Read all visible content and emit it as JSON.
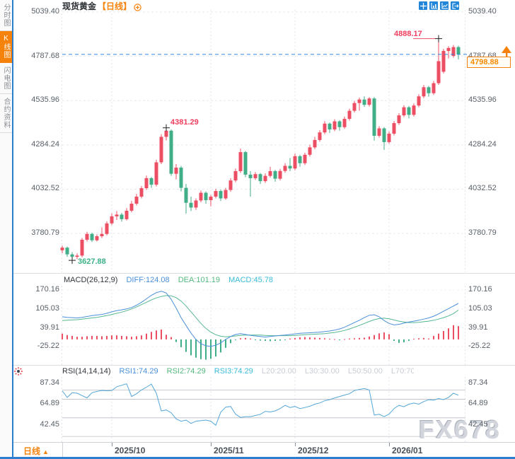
{
  "header": {
    "symbol": "现货黄金",
    "period_tag": "【日线】"
  },
  "sidebar": {
    "tabs": [
      {
        "label": "分时图",
        "active": false
      },
      {
        "label": "K线图",
        "active": true
      },
      {
        "label": "闪电图",
        "active": false
      },
      {
        "label": "合约资料",
        "active": false
      }
    ]
  },
  "toolbar": {
    "icons": [
      "crosshair",
      "axis-chart",
      "trend-chart",
      "exit"
    ]
  },
  "annotations": {
    "high": "4888.17",
    "peak": "4381.29",
    "low": "3627.88"
  },
  "price_tag": {
    "value": "4798.88"
  },
  "indicator_labels": {
    "macd": {
      "name": "MACD(26,12,9)",
      "diff": "DIFF:124.08",
      "dea": "DEA:101.19",
      "macd": "MACD:45.78"
    },
    "rsi": {
      "name": "RSI(14,14,14)",
      "rsi1": "RSI1:74.29",
      "rsi2": "RSI2:74.29",
      "rsi3": "RSI3:74.29",
      "l20": "L20:20.00",
      "l30": "L30:30.00",
      "l50": "L50:50.00",
      "l70": "L70:70.00"
    }
  },
  "bottom_bar": {
    "period": "日线",
    "period_arrow": "▲"
  },
  "watermark": "FX678",
  "colors": {
    "up": "#ec4f63",
    "down": "#40ae86",
    "diff_line": "#4a90d9",
    "dea_line": "#55b890",
    "rsi_line": "#55a7d8",
    "accent_orange": "#f5820a",
    "price_line": "#2e86e0",
    "grid": "#e6e9ee",
    "grid_vertical": "#e2e6eb",
    "rsi_grid": "#b9bdc4",
    "marker_cross": "#222222"
  },
  "chart_data": {
    "type": "candlestick",
    "title": "现货黄金 日线 (Spot Gold Daily)",
    "main": {
      "ylim": [
        3560,
        5039.4
      ],
      "ticks": [
        5039.4,
        4787.68,
        4535.96,
        4284.24,
        4032.52,
        3780.79
      ],
      "last_price": 4798.88,
      "markers": [
        {
          "index": 2,
          "price": 3627.88,
          "label": "3627.88",
          "color": "down",
          "leader": false
        },
        {
          "index": 21,
          "price": 4381.29,
          "label": "4381.29",
          "color": "up",
          "leader": false
        },
        {
          "index": 76,
          "price": 4888.17,
          "label": "4888.17",
          "color": "up",
          "leader": true
        }
      ],
      "candles": [
        [
          3685,
          3712,
          3668,
          3700
        ],
        [
          3700,
          3706,
          3648,
          3662
        ],
        [
          3662,
          3675,
          3628,
          3648
        ],
        [
          3648,
          3668,
          3635,
          3655
        ],
        [
          3655,
          3755,
          3645,
          3745
        ],
        [
          3745,
          3790,
          3735,
          3778
        ],
        [
          3778,
          3785,
          3732,
          3742
        ],
        [
          3742,
          3775,
          3735,
          3765
        ],
        [
          3765,
          3815,
          3755,
          3778
        ],
        [
          3778,
          3850,
          3770,
          3838
        ],
        [
          3838,
          3895,
          3828,
          3878
        ],
        [
          3878,
          3908,
          3858,
          3888
        ],
        [
          3888,
          3898,
          3848,
          3862
        ],
        [
          3862,
          3925,
          3855,
          3910
        ],
        [
          3910,
          3965,
          3900,
          3950
        ],
        [
          3950,
          4005,
          3940,
          3990
        ],
        [
          3990,
          4050,
          3980,
          4038
        ],
        [
          4038,
          4110,
          4028,
          4095
        ],
        [
          4095,
          4102,
          4040,
          4058
        ],
        [
          4058,
          4200,
          4048,
          4185
        ],
        [
          4185,
          4345,
          4175,
          4330
        ],
        [
          4330,
          4381.29,
          4310,
          4365
        ],
        [
          4365,
          4372,
          4108,
          4120
        ],
        [
          4120,
          4175,
          4088,
          4155
        ],
        [
          4155,
          4165,
          4020,
          4040
        ],
        [
          4040,
          4062,
          3893,
          3955
        ],
        [
          3955,
          3990,
          3908,
          3928
        ],
        [
          3928,
          3980,
          3915,
          3968
        ],
        [
          3968,
          4025,
          3958,
          4012
        ],
        [
          4012,
          4020,
          3950,
          3970
        ],
        [
          3970,
          4000,
          3935,
          3990
        ],
        [
          3990,
          4035,
          3980,
          4022
        ],
        [
          4022,
          4030,
          3965,
          3980
        ],
        [
          3980,
          4040,
          3972,
          4028
        ],
        [
          4028,
          4095,
          4018,
          4082
        ],
        [
          4082,
          4150,
          4072,
          4135
        ],
        [
          4135,
          4263,
          4125,
          4243
        ],
        [
          4243,
          4250,
          4100,
          4115
        ],
        [
          4115,
          4135,
          3990,
          4095
        ],
        [
          4095,
          4130,
          4085,
          4118
        ],
        [
          4118,
          4125,
          4062,
          4078
        ],
        [
          4078,
          4122,
          4068,
          4108
        ],
        [
          4108,
          4160,
          4098,
          4135
        ],
        [
          4135,
          4142,
          4075,
          4092
        ],
        [
          4092,
          4148,
          4082,
          4136
        ],
        [
          4136,
          4180,
          4126,
          4165
        ],
        [
          4165,
          4210,
          4135,
          4150
        ],
        [
          4150,
          4235,
          4140,
          4220
        ],
        [
          4220,
          4228,
          4160,
          4180
        ],
        [
          4180,
          4240,
          4170,
          4228
        ],
        [
          4228,
          4285,
          4218,
          4270
        ],
        [
          4270,
          4330,
          4260,
          4312
        ],
        [
          4312,
          4368,
          4302,
          4355
        ],
        [
          4355,
          4420,
          4345,
          4405
        ],
        [
          4405,
          4412,
          4352,
          4372
        ],
        [
          4372,
          4430,
          4362,
          4418
        ],
        [
          4418,
          4425,
          4365,
          4385
        ],
        [
          4385,
          4445,
          4375,
          4432
        ],
        [
          4432,
          4490,
          4422,
          4478
        ],
        [
          4478,
          4535,
          4468,
          4522
        ],
        [
          4522,
          4553,
          4478,
          4542
        ],
        [
          4542,
          4560,
          4500,
          4512
        ],
        [
          4512,
          4556,
          4502,
          4548
        ],
        [
          4548,
          4556,
          4308,
          4336
        ],
        [
          4336,
          4390,
          4326,
          4378
        ],
        [
          4378,
          4385,
          4256,
          4300
        ],
        [
          4300,
          4360,
          4290,
          4348
        ],
        [
          4348,
          4420,
          4338,
          4408
        ],
        [
          4408,
          4465,
          4398,
          4452
        ],
        [
          4452,
          4510,
          4442,
          4498
        ],
        [
          4498,
          4505,
          4435,
          4455
        ],
        [
          4455,
          4520,
          4445,
          4508
        ],
        [
          4508,
          4572,
          4498,
          4560
        ],
        [
          4560,
          4625,
          4550,
          4612
        ],
        [
          4612,
          4620,
          4558,
          4578
        ],
        [
          4578,
          4648,
          4568,
          4635
        ],
        [
          4635,
          4888.17,
          4625,
          4760
        ],
        [
          4700,
          4830,
          4690,
          4818
        ],
        [
          4818,
          4845,
          4775,
          4835
        ],
        [
          4790,
          4852,
          4780,
          4840
        ],
        [
          4840,
          4848,
          4770,
          4798.88
        ]
      ]
    },
    "macd": {
      "params": "26,12,9",
      "ylim": [
        -88,
        185
      ],
      "ticks": [
        170.16,
        105.03,
        39.91,
        -25.22
      ],
      "last": {
        "diff": 124.08,
        "dea": 101.19,
        "macd": 45.78
      },
      "diff": [
        78,
        76,
        75,
        74,
        76,
        79,
        82,
        84,
        86,
        90,
        95,
        99,
        102,
        105,
        110,
        118,
        128,
        140,
        152,
        161,
        166,
        160,
        138,
        108,
        75,
        48,
        22,
        0,
        -15,
        -22,
        -24,
        -20,
        -12,
        0,
        10,
        17,
        20,
        17,
        14,
        12,
        10,
        8,
        10,
        12,
        14,
        15,
        17,
        19,
        21,
        22,
        23,
        24,
        25,
        27,
        29,
        32,
        36,
        42,
        50,
        58,
        66,
        75,
        83,
        85,
        78,
        65,
        55,
        50,
        52,
        56,
        60,
        63,
        66,
        70,
        74,
        80,
        88,
        97,
        106,
        115,
        124.08
      ],
      "dea": [
        65,
        66,
        67,
        68,
        70,
        72,
        74,
        76,
        79,
        82,
        86,
        90,
        94,
        99,
        105,
        112,
        120,
        128,
        136,
        143,
        148,
        151,
        150,
        144,
        132,
        115,
        95,
        75,
        55,
        38,
        25,
        16,
        11,
        9,
        10,
        12,
        14,
        15,
        15,
        15,
        15,
        14,
        13,
        13,
        13,
        13,
        13,
        14,
        15,
        16,
        17,
        18,
        19,
        20,
        22,
        24,
        27,
        31,
        36,
        42,
        48,
        55,
        62,
        68,
        72,
        73,
        71,
        67,
        63,
        60,
        58,
        58,
        59,
        61,
        63,
        66,
        70,
        75,
        81,
        89,
        101.19
      ],
      "hist": [
        20,
        15,
        12,
        9,
        9,
        11,
        12,
        12,
        11,
        12,
        14,
        14,
        12,
        11,
        9,
        11,
        14,
        20,
        26,
        31,
        34,
        16,
        8,
        -9,
        -27,
        -43,
        -55,
        -63,
        -68,
        -70,
        -67,
        -59,
        -45,
        -29,
        -13,
        -2,
        4,
        5,
        3,
        -1,
        -4,
        -5,
        -6,
        -5,
        -4,
        -2,
        3,
        5,
        7,
        8,
        7,
        6,
        5,
        4,
        2,
        1,
        -1,
        1,
        3,
        4,
        5,
        6,
        10,
        15,
        21,
        24,
        18,
        -5,
        -12,
        -10,
        -5,
        2,
        4,
        5,
        3,
        12,
        20,
        29,
        38,
        49,
        45.78
      ]
    },
    "rsi": {
      "params": "14,14,14",
      "ylim": [
        24,
        94
      ],
      "ticks": [
        87.34,
        64.89,
        42.45
      ],
      "grid_lines": [
        80,
        70,
        50,
        30
      ],
      "last": {
        "rsi1": 74.29,
        "rsi2": 74.29,
        "rsi3": 74.29
      },
      "values": [
        79,
        72,
        77,
        76.5,
        74,
        71.5,
        77,
        78.5,
        79.5,
        79.2,
        79.5,
        83.4,
        85.1,
        86.6,
        73,
        76,
        80,
        83,
        86.3,
        76.5,
        57.5,
        58.5,
        55.5,
        48.9,
        46.4,
        47.6,
        44,
        46.4,
        47,
        47.6,
        46.4,
        42,
        56,
        61.5,
        62.3,
        54,
        50.5,
        51.3,
        51.3,
        52.5,
        53.8,
        57,
        56.3,
        57.5,
        60,
        63.5,
        61.1,
        62.3,
        60,
        61.1,
        62.5,
        64.7,
        66,
        68.4,
        69.6,
        71.5,
        73,
        74.5,
        76,
        79.4,
        80.6,
        81.5,
        80,
        53,
        53.8,
        51.3,
        54,
        60,
        63.5,
        62,
        64.7,
        65.9,
        64.7,
        67.5,
        69.6,
        69,
        70.8,
        69.6,
        72,
        76.5,
        74.29
      ]
    },
    "x_axis": {
      "tick_indices": [
        10,
        30,
        47,
        66
      ],
      "tick_labels": [
        "2025/10",
        "2025/11",
        "2025/12",
        "2026/01"
      ]
    }
  }
}
